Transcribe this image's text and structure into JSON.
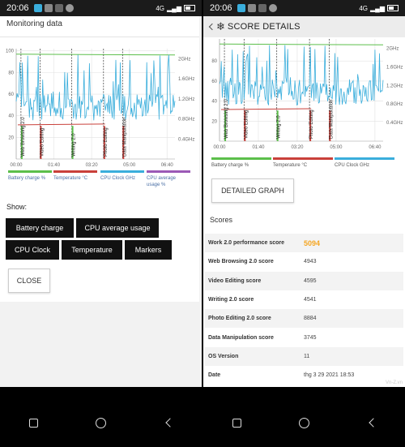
{
  "status_bar": {
    "time": "20:06",
    "network": "4G",
    "battery_icon": "battery-icon"
  },
  "monitoring": {
    "title": "Monitoring data",
    "chart_data": {
      "type": "line",
      "x_ticks": [
        "00:00",
        "01:40",
        "03:20",
        "05:00",
        "06:40"
      ],
      "y_left_ticks": [
        "100",
        "80",
        "60",
        "40",
        "20"
      ],
      "y_right_ticks": [
        "2GHz",
        "1.6GHz",
        "1.2GHz",
        "0.8GHz",
        "0.4GHz"
      ],
      "ylim": [
        0,
        100
      ],
      "markers": [
        "Web Browsing 2.0",
        "Video Editing",
        "Writing 2.0",
        "Photo Editing",
        "Data Manipulation"
      ],
      "series": [
        {
          "name": "Battery charge %",
          "color": "#5cbf4b",
          "values": [
            96,
            96,
            95,
            95,
            94,
            94,
            93,
            93,
            92,
            92,
            92,
            92
          ]
        },
        {
          "name": "Temperature °C",
          "color": "#c9403a",
          "values": [
            28,
            28,
            29,
            29,
            30,
            30,
            31,
            31,
            32,
            32,
            32,
            32
          ]
        },
        {
          "name": "CPU Clock GHz",
          "color": "#3aaedc",
          "values": [
            40,
            95,
            35,
            80,
            30,
            60,
            90,
            35,
            70,
            40,
            95,
            38,
            55,
            30,
            85,
            35,
            60,
            45,
            40,
            38,
            35,
            40
          ]
        },
        {
          "name": "CPU average usage %",
          "color": "#9b59b6",
          "values": []
        }
      ]
    },
    "legend": [
      "Battery charge %",
      "Temperature °C",
      "CPU Clock GHz",
      "CPU average usage %"
    ],
    "show_label": "Show:",
    "options": {
      "battery": "Battery charge",
      "cpu_avg": "CPU average usage",
      "cpu_clock": "CPU Clock",
      "temperature": "Temperature",
      "markers": "Markers"
    },
    "close_label": "CLOSE"
  },
  "score": {
    "title": "SCORE DETAILS",
    "chart_data": {
      "type": "line",
      "x_ticks": [
        "00:00",
        "01:40",
        "03:20",
        "05:00",
        "06:40"
      ],
      "y_left_ticks": [
        "80",
        "60",
        "40",
        "20"
      ],
      "y_right_ticks": [
        "2GHz",
        "1.6GHz",
        "1.2GHz",
        "0.8GHz",
        "0.4GHz"
      ],
      "markers": [
        "Web Browsing 2.0",
        "Video Editing",
        "Writing 2.0",
        "Photo Editing",
        "Data Manipulation"
      ]
    },
    "legend": [
      "Battery charge %",
      "Temperature °C",
      "CPU Clock GHz"
    ],
    "detailed_graph_label": "DETAILED GRAPH",
    "scores_label": "Scores",
    "rows": [
      {
        "name": "Work 2.0 performance score",
        "value": "5094"
      },
      {
        "name": "Web Browsing 2.0 score",
        "value": "4943"
      },
      {
        "name": "Video Editing score",
        "value": "4595"
      },
      {
        "name": "Writing 2.0 score",
        "value": "4541"
      },
      {
        "name": "Photo Editing 2.0 score",
        "value": "8884"
      },
      {
        "name": "Data Manipulation score",
        "value": "3745"
      },
      {
        "name": "OS Version",
        "value": "11"
      },
      {
        "name": "Date",
        "value": "thg 3 29 2021 18:53"
      }
    ],
    "watermark": "Vn-Z.vn"
  },
  "colors": {
    "battery": "#5cbf4b",
    "temperature": "#c9403a",
    "cpu_clock": "#3aaedc",
    "cpu_avg": "#9b59b6",
    "highlight": "#f5a623"
  }
}
